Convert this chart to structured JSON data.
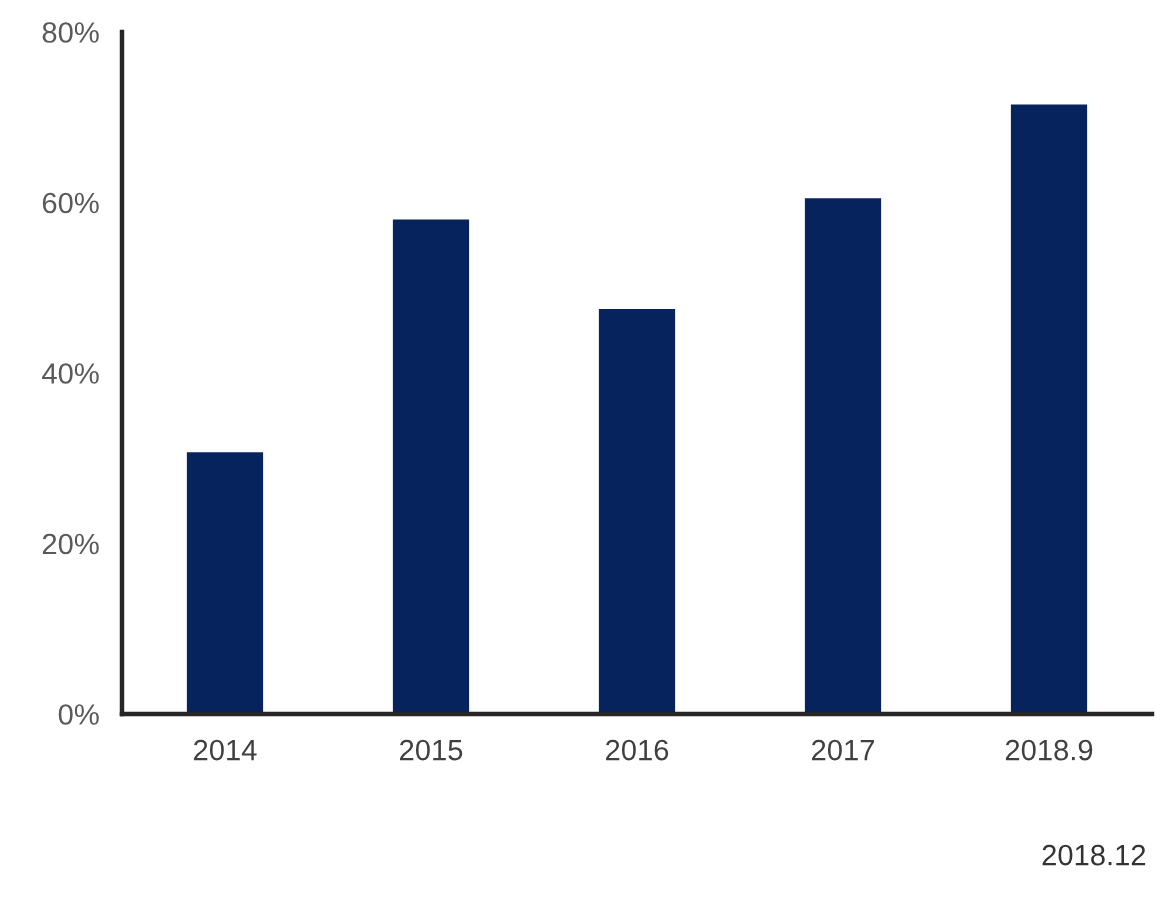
{
  "chart_data": {
    "type": "bar",
    "categories": [
      "2014",
      "2015",
      "2016",
      "2017",
      "2018.9"
    ],
    "values": [
      30.7,
      58,
      47.5,
      60.5,
      71.5
    ],
    "color": "#07235e",
    "ylim": [
      0,
      80
    ],
    "yticks": [
      {
        "value": 0,
        "label": "0%"
      },
      {
        "value": 20,
        "label": "20%"
      },
      {
        "value": 40,
        "label": "40%"
      },
      {
        "value": 60,
        "label": "60%"
      },
      {
        "value": 80,
        "label": "80%"
      }
    ],
    "annotations": [
      "2018.12"
    ]
  }
}
